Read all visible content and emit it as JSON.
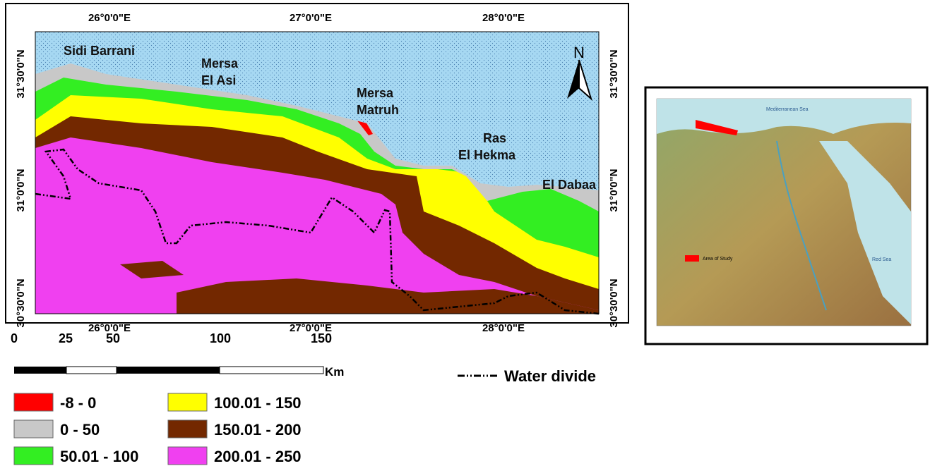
{
  "map": {
    "lon_labels": [
      "26°0'0\"E",
      "27°0'0\"E",
      "28°0'0\"E"
    ],
    "lat_labels": [
      "31°30'0\"N",
      "31°0'0\"N",
      "30°30'0\"N"
    ],
    "north": "N",
    "places": [
      {
        "lines": [
          "Sidi Barrani"
        ]
      },
      {
        "lines": [
          "Mersa",
          "El Asi"
        ]
      },
      {
        "lines": [
          "Mersa",
          "Matruh"
        ]
      },
      {
        "lines": [
          "Ras",
          "El Hekma"
        ]
      },
      {
        "lines": [
          "El Dabaa"
        ]
      }
    ]
  },
  "scale_bar": {
    "labels": [
      "0",
      "25",
      "50",
      "100",
      "150"
    ],
    "unit": "Km"
  },
  "legend": {
    "classes": [
      {
        "label": "-8 - 0",
        "color": "#ff0000"
      },
      {
        "label": "0 - 50",
        "color": "#c8c8c8"
      },
      {
        "label": "50.01 - 100",
        "color": "#33ee22"
      },
      {
        "label": "100.01 - 150",
        "color": "#ffff00"
      },
      {
        "label": "150.01 - 200",
        "color": "#732800"
      },
      {
        "label": "200.01 - 250",
        "color": "#f040f0"
      }
    ],
    "water_divide": "Water divide"
  },
  "inset": {
    "sea_north": "Mediterranean Sea",
    "sea_east": "Red Sea",
    "study_area": "Area of Study"
  }
}
